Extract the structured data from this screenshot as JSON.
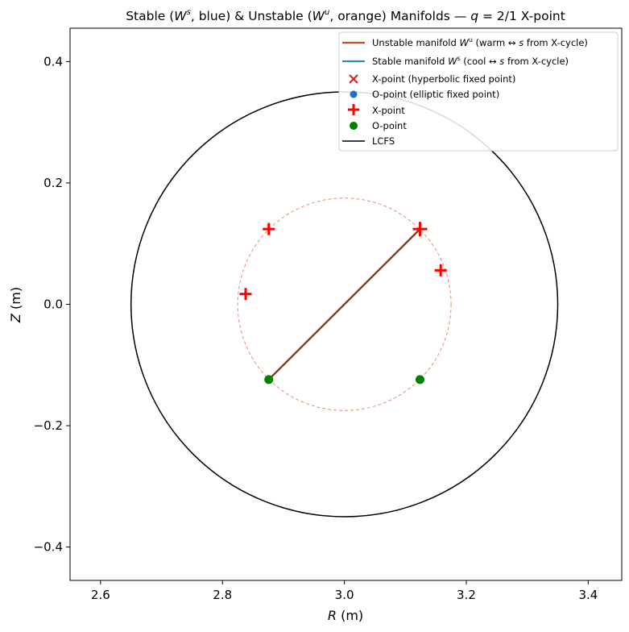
{
  "chart_data": {
    "type": "scatter",
    "title": "Stable (W^s, blue) & Unstable (W^u, orange) Manifolds — q = 2/1 X-point",
    "title_parts": {
      "p1": "Stable (",
      "w1": "W",
      "s1": "s",
      "p2": ", blue) & Unstable (",
      "w2": "W",
      "s2": "u",
      "p3": ", orange) Manifolds — ",
      "q": "q",
      "p4": " = 2/1 X-point"
    },
    "xlabel": {
      "var": "R",
      "unit": " (m)"
    },
    "ylabel": {
      "var": "Z",
      "unit": " (m)"
    },
    "xlim": [
      2.55,
      3.455
    ],
    "ylim": [
      -0.455,
      0.455
    ],
    "xticks": [
      2.6,
      2.8,
      3.0,
      3.2,
      3.4
    ],
    "xtick_labels": [
      "2.6",
      "2.8",
      "3.0",
      "3.2",
      "3.4"
    ],
    "yticks": [
      -0.4,
      -0.2,
      0.0,
      0.2,
      0.4
    ],
    "ytick_labels": [
      "−0.4",
      "−0.2",
      "0.0",
      "0.2",
      "0.4"
    ],
    "grid": false,
    "legend_position": "top-right",
    "colors": {
      "unstable": "#c0501e",
      "stable": "#2a8fbd",
      "overlap": "#8b3512",
      "x_marker_legend": "#d62728",
      "o_marker_legend": "#1f6fc2",
      "x_plus": "#ff0000",
      "o_point": "#008000",
      "lcfs": "#000000",
      "dashed_circle": "#f08a70"
    },
    "lcfs": {
      "center": [
        3.0,
        0.0
      ],
      "radius": 0.35
    },
    "reference_circle": {
      "center": [
        3.0,
        0.0
      ],
      "radius": 0.175,
      "style": "dashed"
    },
    "unstable_manifold": {
      "x": [
        2.876,
        3.124
      ],
      "y": [
        -0.124,
        0.124
      ]
    },
    "stable_manifold": {
      "x": [
        2.876,
        3.124
      ],
      "y": [
        -0.124,
        0.124
      ]
    },
    "x_points": [
      {
        "x": 2.876,
        "y": 0.124
      },
      {
        "x": 3.124,
        "y": 0.124
      },
      {
        "x": 3.158,
        "y": 0.056
      },
      {
        "x": 2.838,
        "y": 0.017
      }
    ],
    "o_points": [
      {
        "x": 2.876,
        "y": -0.124
      },
      {
        "x": 3.124,
        "y": -0.124
      }
    ],
    "legend": [
      {
        "key": "unstable",
        "label": "Unstable manifold Wᵘ (warm ↔ s from X-cycle)",
        "parts": {
          "a": "Unstable manifold ",
          "w": "W",
          "sup": "u",
          "b": " (warm  ↔  ",
          "s": "s",
          "c": " from X-cycle)"
        }
      },
      {
        "key": "stable",
        "label": "Stable manifold Wˢ (cool ↔ s from X-cycle)",
        "parts": {
          "a": "Stable manifold ",
          "w": "W",
          "sup": "s",
          "b": " (cool  ↔  ",
          "s": "s",
          "c": " from X-cycle)"
        }
      },
      {
        "key": "xmark",
        "label": "X-point (hyperbolic fixed point)"
      },
      {
        "key": "omark",
        "label": "O-point (elliptic fixed point)"
      },
      {
        "key": "xplus",
        "label": "X-point"
      },
      {
        "key": "opoint",
        "label": "O-point"
      },
      {
        "key": "lcfs",
        "label": "LCFS"
      }
    ]
  }
}
